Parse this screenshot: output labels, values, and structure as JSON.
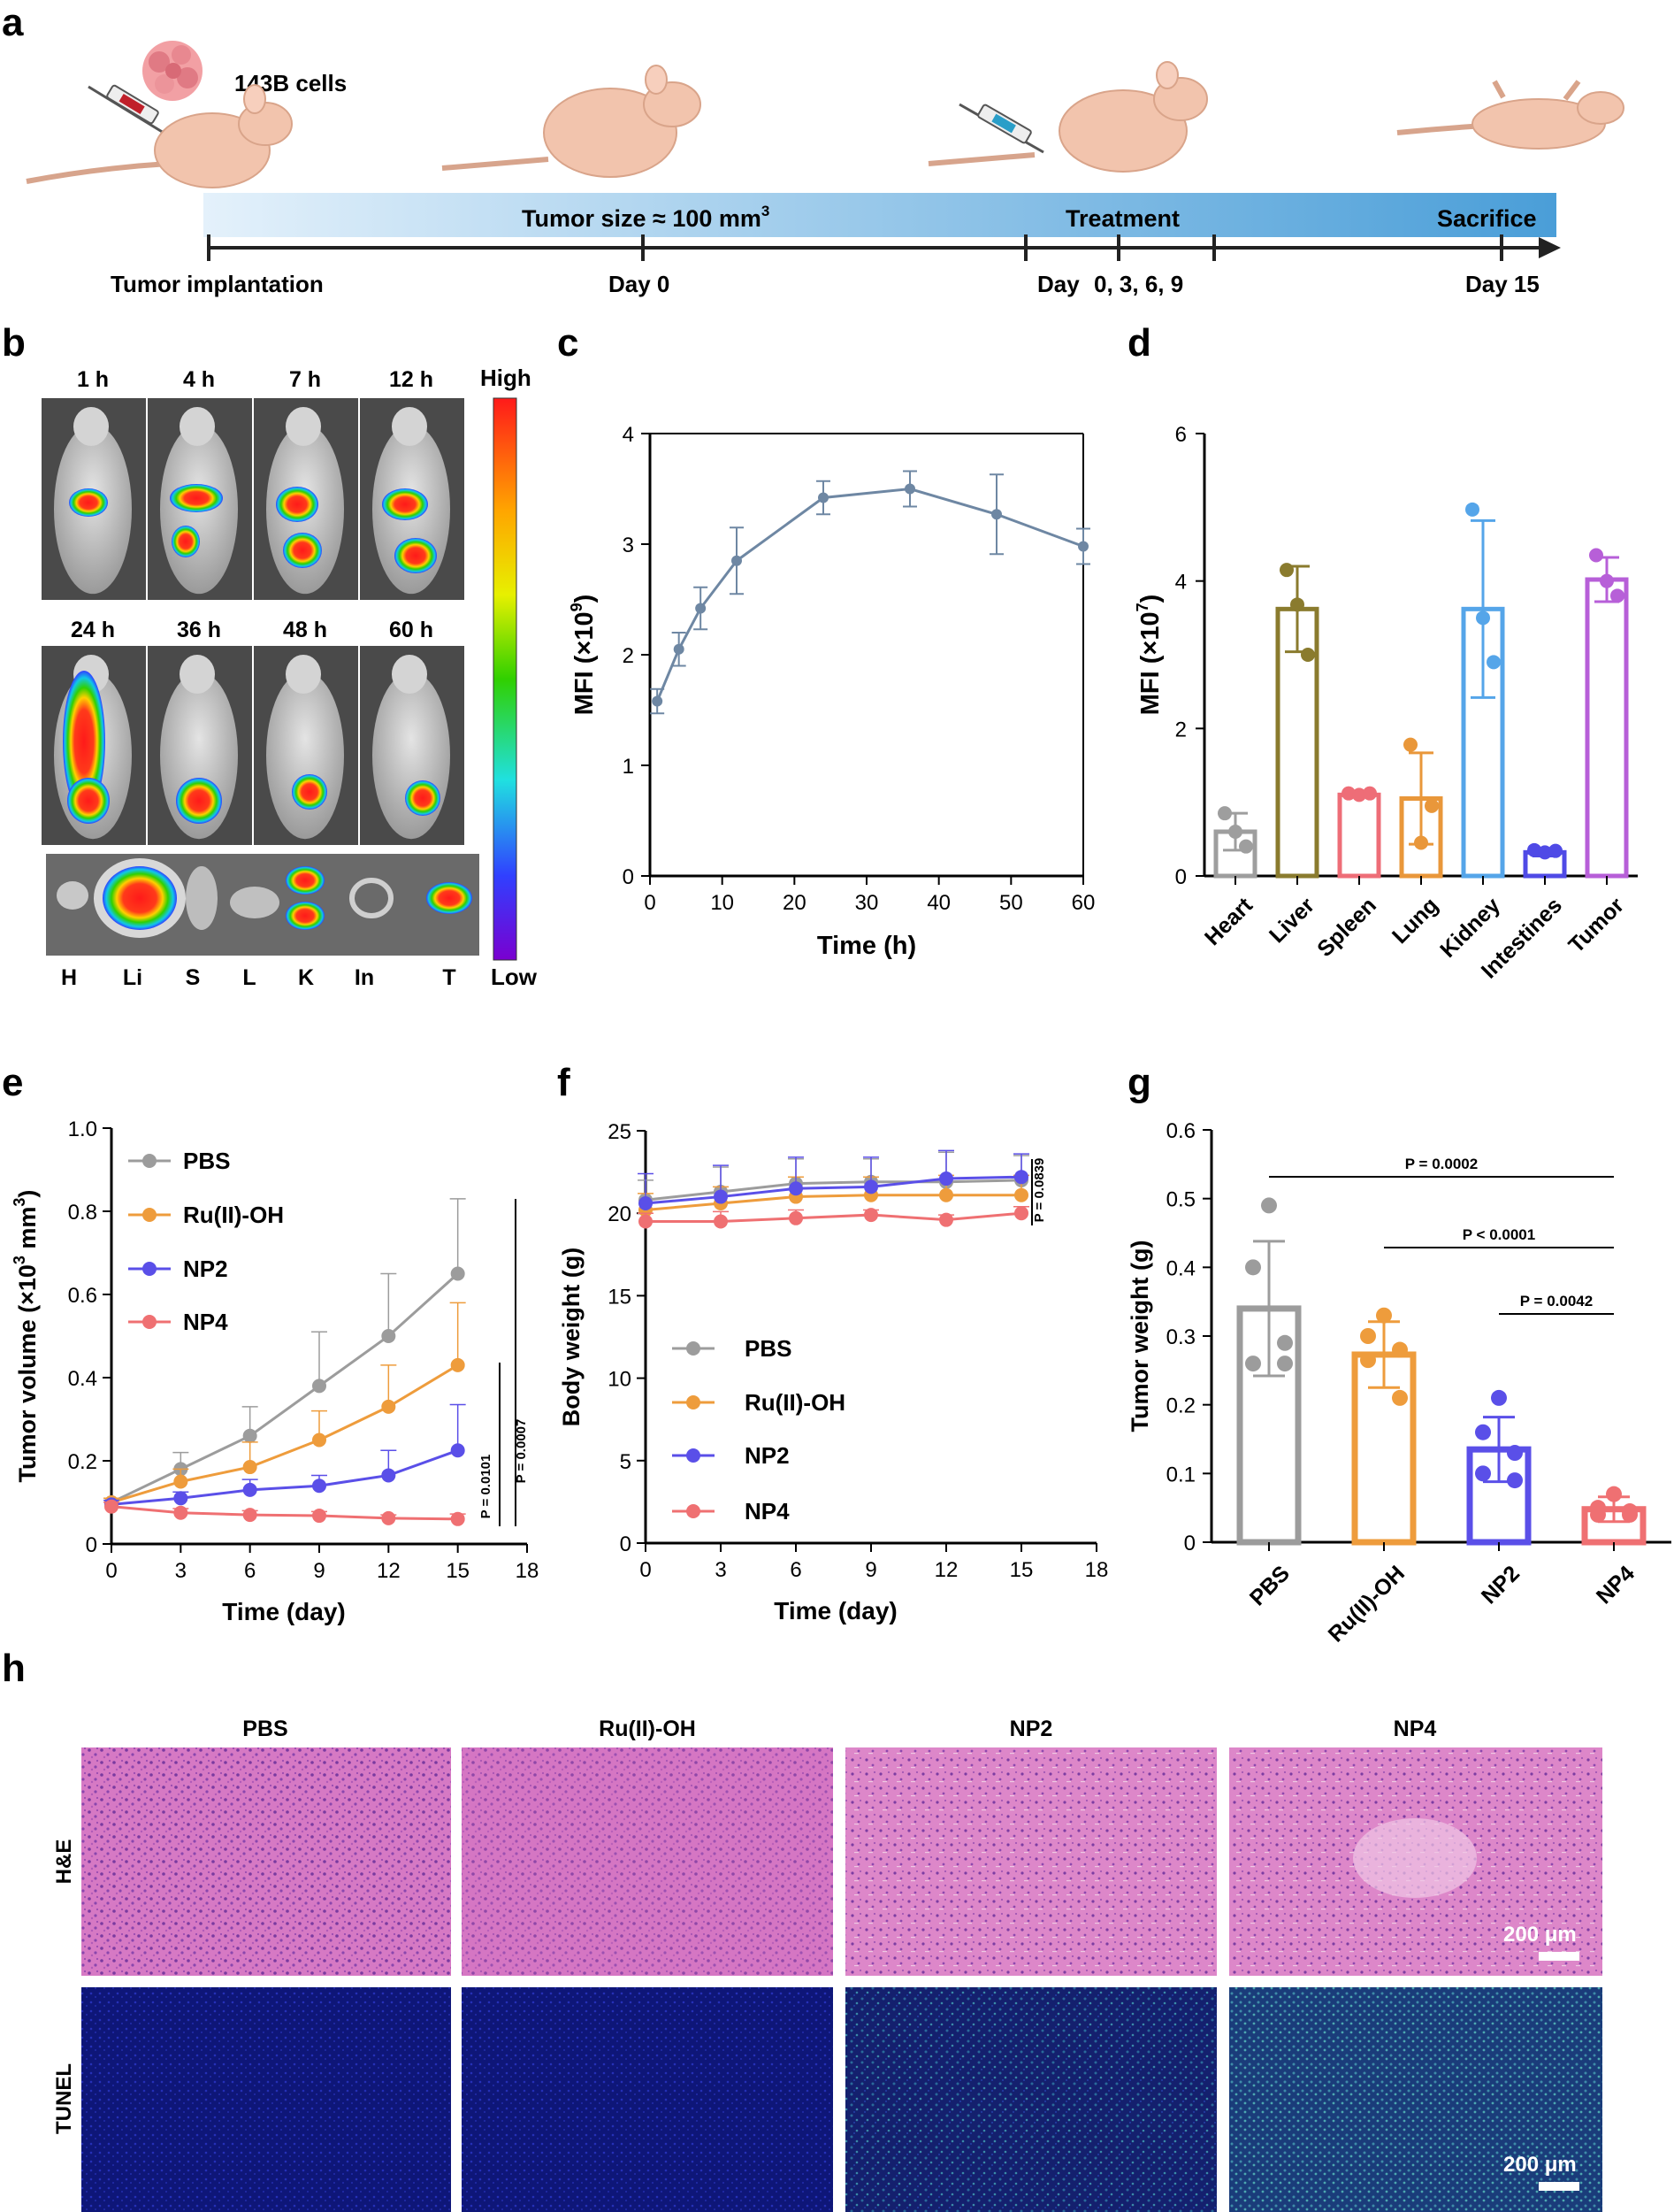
{
  "panels": {
    "a": {
      "label": "a",
      "cell_line": "143B cells",
      "stage_tumor_size": "Tumor size ≈ 100 mm",
      "stage_tumor_size_sup": "3",
      "stage_treatment": "Treatment",
      "stage_sacrifice": "Sacrifice",
      "tick_implant": "Tumor implantation",
      "tick_day0": "Day 0",
      "tick_days_label": "Day",
      "tick_days_values": "0, 3, 6, 9",
      "tick_day15": "Day 15"
    },
    "b": {
      "label": "b",
      "times_row1": [
        "1 h",
        "4 h",
        "7 h",
        "12 h"
      ],
      "times_row2": [
        "24 h",
        "36 h",
        "48 h",
        "60 h"
      ],
      "scale_high": "High",
      "scale_low": "Low",
      "organs": [
        "H",
        "Li",
        "S",
        "L",
        "K",
        "In",
        "T"
      ]
    },
    "c": {
      "label": "c"
    },
    "d": {
      "label": "d"
    },
    "e": {
      "label": "e"
    },
    "f": {
      "label": "f"
    },
    "g": {
      "label": "g"
    },
    "h": {
      "label": "h",
      "groups": [
        "PBS",
        "Ru(II)-OH",
        "NP2",
        "NP4"
      ],
      "row_he": "H&E",
      "row_tunel": "TUNEL",
      "scale_bar": "200 μm"
    }
  },
  "colors": {
    "pbs": "#9c9c9c",
    "ru": "#ee9c3c",
    "np2": "#5a4fe8",
    "np4": "#ef7072",
    "line_c": "#6e87a3",
    "heart": "#9e9e9e",
    "liver": "#8a7b2e",
    "spleen": "#ee6d77",
    "lung": "#e9973a",
    "kidney": "#55a5e9",
    "intestines": "#4f4ae6",
    "tumor": "#b75fd8"
  },
  "chart_data": [
    {
      "id": "c",
      "type": "line",
      "xlabel": "Time (h)",
      "ylabel": "MFI (×10",
      "ylabel_sup": "9",
      "ylabel_close": ")",
      "xlim": [
        0,
        60
      ],
      "ylim": [
        0,
        4
      ],
      "xticks": [
        0,
        10,
        20,
        30,
        40,
        50,
        60
      ],
      "yticks": [
        0,
        1,
        2,
        3,
        4
      ],
      "x": [
        1,
        4,
        7,
        12,
        24,
        36,
        48,
        60
      ],
      "y": [
        1.58,
        2.05,
        2.42,
        2.85,
        3.42,
        3.5,
        3.27,
        2.98
      ],
      "err": [
        0.11,
        0.15,
        0.19,
        0.3,
        0.15,
        0.16,
        0.36,
        0.16
      ]
    },
    {
      "id": "d",
      "type": "bar",
      "ylabel": "MFI (×10",
      "ylabel_sup": "7",
      "ylabel_close": ")",
      "ylim": [
        0,
        6
      ],
      "yticks": [
        0,
        2,
        4,
        6
      ],
      "categories": [
        "Heart",
        "Liver",
        "Spleen",
        "Lung",
        "Kidney",
        "Intestines",
        "Tumor"
      ],
      "values": [
        0.6,
        3.62,
        1.1,
        1.05,
        3.62,
        0.32,
        4.02
      ],
      "err": [
        0.25,
        0.58,
        0.03,
        0.62,
        1.2,
        0.05,
        0.3
      ],
      "points": [
        [
          0.85,
          0.6,
          0.4
        ],
        [
          4.15,
          3.68,
          3.0
        ],
        [
          1.12,
          1.1,
          1.12
        ],
        [
          1.78,
          0.45,
          0.95
        ],
        [
          4.97,
          3.5,
          2.9
        ],
        [
          0.35,
          0.32,
          0.34
        ],
        [
          4.35,
          4.0,
          3.8
        ]
      ]
    },
    {
      "id": "e",
      "type": "line",
      "xlabel": "Time (day)",
      "ylabel": "Tumor volume (×10",
      "ylabel_sup": "3",
      "ylabel_close": " mm",
      "ylabel_sup2": "3",
      "ylabel_end": ")",
      "xlim": [
        0,
        18
      ],
      "ylim": [
        0,
        1.0
      ],
      "xticks": [
        0,
        3,
        6,
        9,
        12,
        15,
        18
      ],
      "yticks": [
        0,
        0.2,
        0.4,
        0.6,
        0.8,
        1.0
      ],
      "ytick_labels": [
        "0",
        "0.2",
        "0.4",
        "0.6",
        "0.8",
        "1.0"
      ],
      "x": [
        0,
        3,
        6,
        9,
        12,
        15
      ],
      "series": [
        {
          "name": "PBS",
          "values": [
            0.1,
            0.18,
            0.26,
            0.38,
            0.5,
            0.65
          ],
          "err": [
            0.01,
            0.04,
            0.07,
            0.13,
            0.15,
            0.18
          ]
        },
        {
          "name": "Ru(II)-OH",
          "values": [
            0.1,
            0.15,
            0.185,
            0.25,
            0.33,
            0.43
          ],
          "err": [
            0.01,
            0.03,
            0.06,
            0.07,
            0.1,
            0.15
          ]
        },
        {
          "name": "NP2",
          "values": [
            0.095,
            0.11,
            0.13,
            0.14,
            0.165,
            0.225
          ],
          "err": [
            0.01,
            0.015,
            0.025,
            0.025,
            0.06,
            0.11
          ]
        },
        {
          "name": "NP4",
          "values": [
            0.09,
            0.075,
            0.07,
            0.068,
            0.062,
            0.06
          ],
          "err": [
            0.01,
            0.01,
            0.01,
            0.01,
            0.008,
            0.012
          ]
        }
      ],
      "annotations": [
        "P = 0.0101",
        "P = 0.0007"
      ]
    },
    {
      "id": "f",
      "type": "line",
      "xlabel": "Time (day)",
      "ylabel": "Body weight (g)",
      "xlim": [
        0,
        18
      ],
      "ylim": [
        0,
        25
      ],
      "xticks": [
        0,
        3,
        6,
        9,
        12,
        15,
        18
      ],
      "yticks": [
        0,
        5,
        10,
        15,
        20,
        25
      ],
      "x": [
        0,
        3,
        6,
        9,
        12,
        15
      ],
      "series": [
        {
          "name": "PBS",
          "values": [
            20.8,
            21.3,
            21.8,
            21.9,
            21.9,
            22.0
          ],
          "err": [
            1.2,
            1.5,
            1.5,
            1.4,
            1.8,
            1.5
          ]
        },
        {
          "name": "Ru(II)-OH",
          "values": [
            20.2,
            20.6,
            21.0,
            21.1,
            21.1,
            21.1
          ],
          "err": [
            1.0,
            1.0,
            1.2,
            1.1,
            1.2,
            1.2
          ]
        },
        {
          "name": "NP2",
          "values": [
            20.6,
            21.0,
            21.5,
            21.6,
            22.1,
            22.2
          ],
          "err": [
            1.8,
            1.9,
            1.9,
            1.8,
            1.7,
            1.4
          ]
        },
        {
          "name": "NP4",
          "values": [
            19.5,
            19.5,
            19.7,
            19.9,
            19.6,
            20.0
          ],
          "err": [
            0.5,
            0.6,
            0.5,
            0.3,
            0.3,
            0.4
          ]
        }
      ],
      "annotations": [
        "P = 0.0839"
      ]
    },
    {
      "id": "g",
      "type": "bar",
      "ylabel": "Tumor weight (g)",
      "ylim": [
        0,
        0.6
      ],
      "yticks": [
        0,
        0.1,
        0.2,
        0.3,
        0.4,
        0.5,
        0.6
      ],
      "ytick_labels": [
        "0",
        "0.1",
        "0.2",
        "0.3",
        "0.4",
        "0.5",
        "0.6"
      ],
      "categories": [
        "PBS",
        "Ru(II)-OH",
        "NP2",
        "NP4"
      ],
      "values": [
        0.34,
        0.273,
        0.135,
        0.048
      ],
      "err": [
        0.098,
        0.048,
        0.047,
        0.018
      ],
      "points": [
        [
          0.49,
          0.4,
          0.29,
          0.26,
          0.26
        ],
        [
          0.33,
          0.3,
          0.28,
          0.265,
          0.21
        ],
        [
          0.21,
          0.16,
          0.13,
          0.1,
          0.09
        ],
        [
          0.07,
          0.05,
          0.045,
          0.04,
          0.04
        ]
      ],
      "comparisons": [
        {
          "from": 0,
          "to": 3,
          "label": "P = 0.0002"
        },
        {
          "from": 1,
          "to": 3,
          "label": "P < 0.0001"
        },
        {
          "from": 2,
          "to": 3,
          "label": "P = 0.0042"
        }
      ]
    }
  ]
}
